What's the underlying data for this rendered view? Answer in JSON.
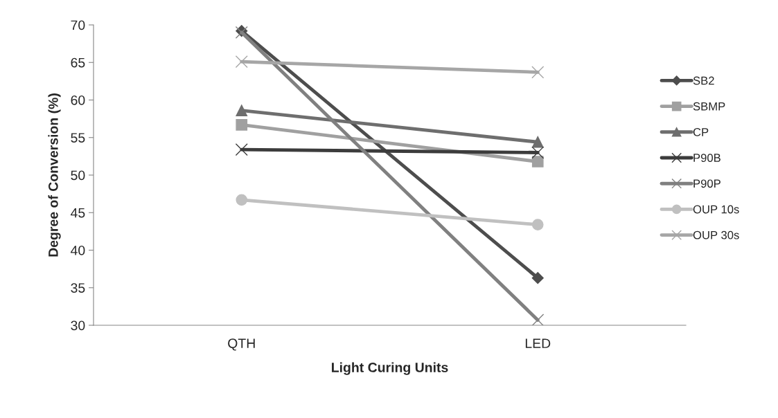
{
  "chart_data": {
    "type": "line",
    "xlabel": "Light Curing Units",
    "ylabel": "Degree of Conversion (%)",
    "categories": [
      "QTH",
      "LED"
    ],
    "series": [
      {
        "name": "SB2",
        "color": "#4d4d4d",
        "marker": "diamond",
        "values": [
          69.2,
          36.3
        ]
      },
      {
        "name": "SBMP",
        "color": "#a0a0a0",
        "marker": "square",
        "values": [
          56.7,
          51.8
        ]
      },
      {
        "name": "CP",
        "color": "#6e6e6e",
        "marker": "triangle",
        "values": [
          58.6,
          54.4
        ]
      },
      {
        "name": "P90B",
        "color": "#3c3c3c",
        "marker": "cross",
        "values": [
          53.4,
          53.0
        ]
      },
      {
        "name": "P90P",
        "color": "#808080",
        "marker": "cross",
        "values": [
          69.0,
          30.7
        ]
      },
      {
        "name": "OUP 10s",
        "color": "#c0c0c0",
        "marker": "circle",
        "values": [
          46.7,
          43.4
        ]
      },
      {
        "name": "OUP 30s",
        "color": "#a6a6a6",
        "marker": "cross",
        "values": [
          65.1,
          63.7
        ]
      }
    ],
    "ylim": [
      30,
      70
    ],
    "yticks": [
      30,
      35,
      40,
      45,
      50,
      55,
      60,
      65,
      70
    ],
    "grid": false,
    "legend": "right"
  }
}
